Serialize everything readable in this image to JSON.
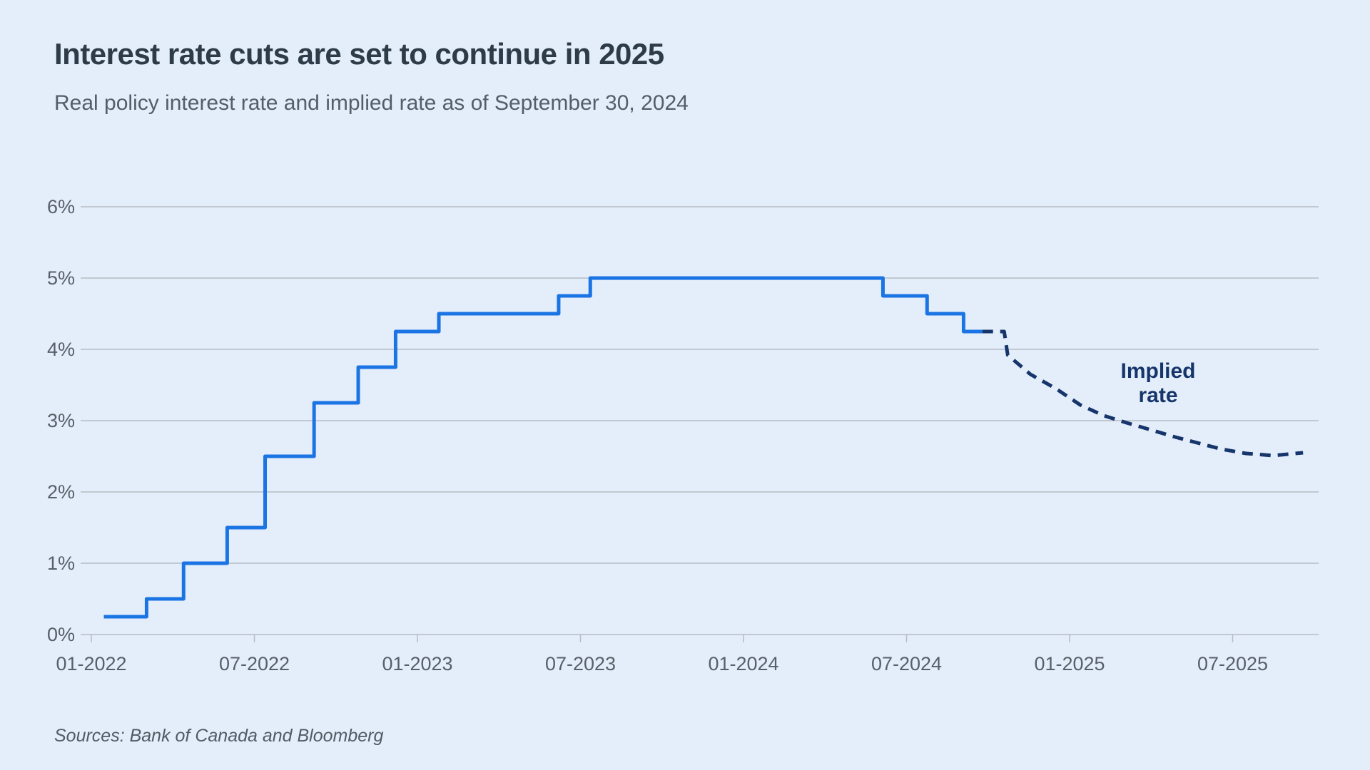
{
  "header": {
    "title": "Interest rate cuts are set to continue in 2025",
    "subtitle": "Real policy interest rate and implied rate as of September 30, 2024"
  },
  "footer": {
    "sources": "Sources: Bank of Canada and Bloomberg"
  },
  "colors": {
    "background": "#e4eefa",
    "policy_line": "#1b74e4",
    "implied_line": "#16356b",
    "gridline": "#b5bcc4",
    "axis_text": "#575f68",
    "title_text": "#2e3b48"
  },
  "chart_data": {
    "type": "line",
    "title": "Interest rate cuts are set to continue in 2025",
    "subtitle": "Real policy interest rate and implied rate as of September 30, 2024",
    "xlabel": "",
    "ylabel": "",
    "ylim": [
      0,
      6.5
    ],
    "grid": "horizontal",
    "legend": "none",
    "y_ticks": [
      {
        "value": 0,
        "label": "0%"
      },
      {
        "value": 1,
        "label": "1%"
      },
      {
        "value": 2,
        "label": "2%"
      },
      {
        "value": 3,
        "label": "3%"
      },
      {
        "value": 4,
        "label": "4%"
      },
      {
        "value": 5,
        "label": "5%"
      },
      {
        "value": 6,
        "label": "6%"
      }
    ],
    "x_ticks": [
      {
        "date": "2022-01-01",
        "label": "01-2022"
      },
      {
        "date": "2022-07-01",
        "label": "07-2022"
      },
      {
        "date": "2023-01-01",
        "label": "01-2023"
      },
      {
        "date": "2023-07-01",
        "label": "07-2023"
      },
      {
        "date": "2024-01-01",
        "label": "01-2024"
      },
      {
        "date": "2024-07-01",
        "label": "07-2024"
      },
      {
        "date": "2025-01-01",
        "label": "01-2025"
      },
      {
        "date": "2025-07-01",
        "label": "07-2025"
      }
    ],
    "series": [
      {
        "name": "Real policy interest rate",
        "draw": "step-after",
        "line_style": "solid",
        "color": "#1b74e4",
        "points": [
          [
            "2022-01-15",
            0.25
          ],
          [
            "2022-03-02",
            0.5
          ],
          [
            "2022-04-13",
            1.0
          ],
          [
            "2022-06-01",
            1.5
          ],
          [
            "2022-07-13",
            2.5
          ],
          [
            "2022-09-07",
            3.25
          ],
          [
            "2022-10-26",
            3.75
          ],
          [
            "2022-12-07",
            4.25
          ],
          [
            "2023-01-25",
            4.5
          ],
          [
            "2023-06-07",
            4.75
          ],
          [
            "2023-07-12",
            5.0
          ],
          [
            "2024-06-05",
            4.75
          ],
          [
            "2024-07-24",
            4.5
          ],
          [
            "2024-09-04",
            4.25
          ]
        ],
        "end_date": "2024-09-25"
      },
      {
        "name": "Implied rate",
        "draw": "line",
        "line_style": "dashed",
        "color": "#16356b",
        "points": [
          [
            "2024-09-25",
            4.25
          ],
          [
            "2024-10-19",
            4.25
          ],
          [
            "2024-10-23",
            3.92
          ],
          [
            "2024-11-18",
            3.65
          ],
          [
            "2024-12-16",
            3.45
          ],
          [
            "2025-01-13",
            3.22
          ],
          [
            "2025-02-09",
            3.07
          ],
          [
            "2025-03-04",
            2.97
          ],
          [
            "2025-04-01",
            2.87
          ],
          [
            "2025-04-28",
            2.77
          ],
          [
            "2025-05-25",
            2.68
          ],
          [
            "2025-06-19",
            2.6
          ],
          [
            "2025-07-16",
            2.54
          ],
          [
            "2025-08-16",
            2.51
          ],
          [
            "2025-09-19",
            2.55
          ]
        ]
      }
    ],
    "annotation": {
      "lines": [
        "Implied",
        "rate"
      ],
      "anchor_date": "2025-04-05",
      "anchor_value": 3.45
    }
  }
}
